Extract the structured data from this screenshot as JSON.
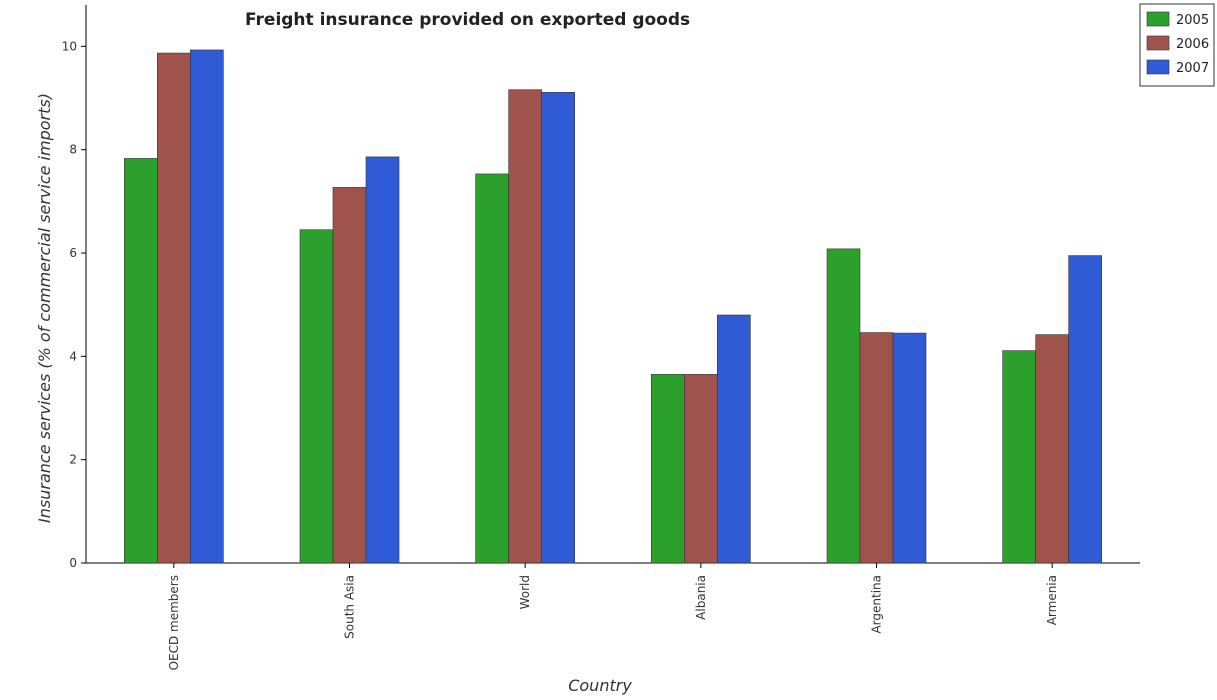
{
  "chart_data": {
    "type": "bar",
    "title": "Freight insurance provided on exported goods",
    "xlabel": "Country",
    "ylabel": "Insurance services (% of commercial service imports)",
    "categories": [
      "OECD members",
      "South Asia",
      "World",
      "Albania",
      "Argentina",
      "Armenia"
    ],
    "series": [
      {
        "name": "2005",
        "color": "#2ca02c",
        "values": [
          7.83,
          6.45,
          7.53,
          3.65,
          6.08,
          4.11
        ]
      },
      {
        "name": "2006",
        "color": "#a0524d",
        "values": [
          9.87,
          7.27,
          9.16,
          3.65,
          4.46,
          4.42
        ]
      },
      {
        "name": "2007",
        "color": "#2f5bd6",
        "values": [
          9.93,
          7.86,
          9.11,
          4.8,
          4.45,
          5.95
        ]
      }
    ],
    "ylim": [
      0,
      10.8
    ],
    "yticks": [
      0,
      2,
      4,
      6,
      8,
      10
    ],
    "grid": false,
    "legend": "top-right"
  }
}
